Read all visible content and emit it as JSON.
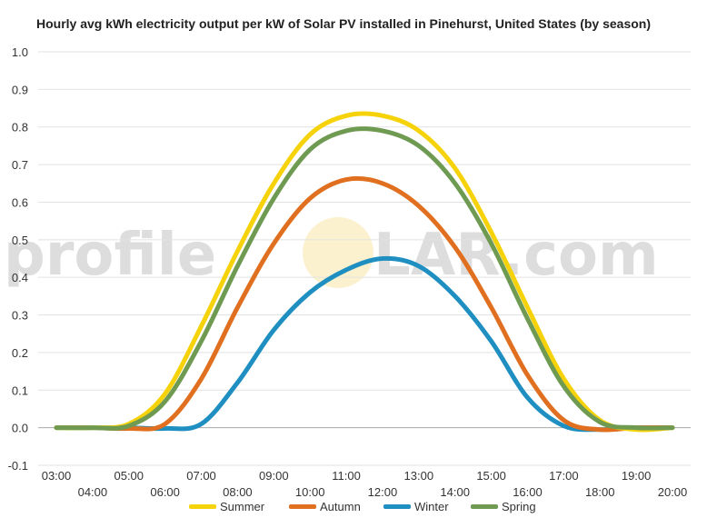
{
  "chart_data": {
    "type": "line",
    "title": "Hourly avg kWh electricity output per kW of Solar PV installed in Pinehurst, United States (by season)",
    "xlabel": "",
    "ylabel": "",
    "watermark": {
      "left": "profile",
      "right": "LAR.com",
      "sun_color": "#f7d774"
    },
    "categories": [
      "03:00",
      "04:00",
      "05:00",
      "06:00",
      "07:00",
      "08:00",
      "09:00",
      "10:00",
      "11:00",
      "12:00",
      "13:00",
      "14:00",
      "15:00",
      "16:00",
      "17:00",
      "18:00",
      "19:00",
      "20:00"
    ],
    "y_ticks": [
      "1.0",
      "0.9",
      "0.8",
      "0.7",
      "0.6",
      "0.5",
      "0.4",
      "0.3",
      "0.2",
      "0.1",
      "0.0",
      "-0.1"
    ],
    "ylim": [
      -0.1,
      1.0
    ],
    "grid": true,
    "legend_position": "bottom",
    "series": [
      {
        "name": "Summer",
        "color": "#f5d20a",
        "values": [
          0.0,
          0.0,
          0.01,
          0.09,
          0.27,
          0.47,
          0.65,
          0.78,
          0.83,
          0.83,
          0.79,
          0.69,
          0.52,
          0.32,
          0.13,
          0.02,
          -0.005,
          0.0
        ]
      },
      {
        "name": "Autumn",
        "color": "#e07020",
        "values": [
          0.0,
          0.0,
          -0.002,
          0.01,
          0.13,
          0.32,
          0.49,
          0.61,
          0.66,
          0.65,
          0.59,
          0.48,
          0.32,
          0.14,
          0.02,
          -0.005,
          0.0,
          0.0
        ]
      },
      {
        "name": "Winter",
        "color": "#1e8fc0",
        "values": [
          0.0,
          0.0,
          0.0,
          -0.002,
          0.01,
          0.12,
          0.26,
          0.36,
          0.42,
          0.45,
          0.43,
          0.35,
          0.23,
          0.08,
          0.005,
          -0.005,
          0.0,
          0.0
        ]
      },
      {
        "name": "Spring",
        "color": "#6e9a52",
        "values": [
          0.0,
          0.0,
          0.005,
          0.07,
          0.23,
          0.43,
          0.61,
          0.74,
          0.79,
          0.79,
          0.75,
          0.65,
          0.49,
          0.29,
          0.11,
          0.015,
          0.0,
          0.0
        ]
      }
    ]
  }
}
